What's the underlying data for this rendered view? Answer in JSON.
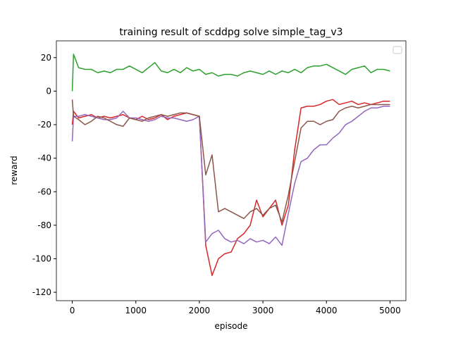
{
  "chart_data": {
    "type": "line",
    "title": "training result of scddpg solve simple_tag_v3",
    "x_label": "episode",
    "y_label": "reward",
    "x": [
      0,
      20,
      100,
      200,
      300,
      400,
      500,
      600,
      700,
      800,
      900,
      1000,
      1100,
      1200,
      1300,
      1400,
      1500,
      1600,
      1700,
      1800,
      1900,
      2000,
      2100,
      2200,
      2300,
      2400,
      2500,
      2600,
      2700,
      2800,
      2900,
      3000,
      3100,
      3200,
      3300,
      3400,
      3500,
      3600,
      3700,
      3800,
      3900,
      4000,
      4100,
      4200,
      4300,
      4400,
      4500,
      4600,
      4700,
      4800,
      4900,
      5000
    ],
    "series": [
      {
        "color": "#2ca02c",
        "values": [
          0,
          22,
          14,
          13,
          13,
          11,
          12,
          11,
          13,
          13,
          15,
          13,
          11,
          14,
          17,
          12,
          11,
          13,
          11,
          14,
          12,
          13,
          10,
          11,
          9,
          10,
          10,
          9,
          11,
          12,
          11,
          10,
          12,
          10,
          12,
          11,
          13,
          11,
          14,
          15,
          15,
          16,
          14,
          12,
          10,
          13,
          14,
          15,
          11,
          13,
          13,
          12
        ]
      },
      {
        "color": "#d62728",
        "values": [
          -20,
          -12,
          -16,
          -15,
          -14,
          -16,
          -15,
          -16,
          -15,
          -14,
          -16,
          -17,
          -15,
          -17,
          -16,
          -14,
          -17,
          -15,
          -14,
          -13,
          -14,
          -15,
          -92,
          -110,
          -100,
          -97,
          -96,
          -88,
          -85,
          -80,
          -65,
          -75,
          -70,
          -65,
          -80,
          -68,
          -35,
          -10,
          -9,
          -9,
          -8,
          -6,
          -5,
          -8,
          -7,
          -6,
          -8,
          -7,
          -8,
          -7,
          -6,
          -6
        ]
      },
      {
        "color": "#9467bd",
        "values": [
          -30,
          -15,
          -15,
          -14,
          -15,
          -16,
          -17,
          -17,
          -16,
          -12,
          -16,
          -16,
          -17,
          -18,
          -17,
          -15,
          -16,
          -16,
          -17,
          -18,
          -17,
          -15,
          -90,
          -85,
          -83,
          -88,
          -90,
          -89,
          -91,
          -88,
          -90,
          -89,
          -91,
          -87,
          -92,
          -73,
          -55,
          -42,
          -40,
          -35,
          -32,
          -32,
          -28,
          -25,
          -20,
          -18,
          -15,
          -12,
          -10,
          -10,
          -9,
          -9
        ]
      },
      {
        "color": "#8c564b",
        "values": [
          -5,
          -15,
          -17,
          -20,
          -18,
          -15,
          -16,
          -18,
          -20,
          -21,
          -16,
          -17,
          -18,
          -16,
          -15,
          -14,
          -15,
          -14,
          -13,
          -13,
          -14,
          -15,
          -50,
          -38,
          -72,
          -70,
          -72,
          -74,
          -76,
          -72,
          -70,
          -74,
          -70,
          -68,
          -78,
          -62,
          -42,
          -22,
          -18,
          -18,
          -20,
          -18,
          -17,
          -12,
          -10,
          -9,
          -10,
          -9,
          -8,
          -8,
          -8,
          -8
        ]
      }
    ],
    "xlim": [
      -250,
      5250
    ],
    "ylim": [
      -125,
      30
    ],
    "xticks": [
      0,
      1000,
      2000,
      3000,
      4000,
      5000
    ],
    "yticks": [
      -120,
      -100,
      -80,
      -60,
      -40,
      -20,
      0,
      20
    ],
    "legend": "upper right"
  }
}
